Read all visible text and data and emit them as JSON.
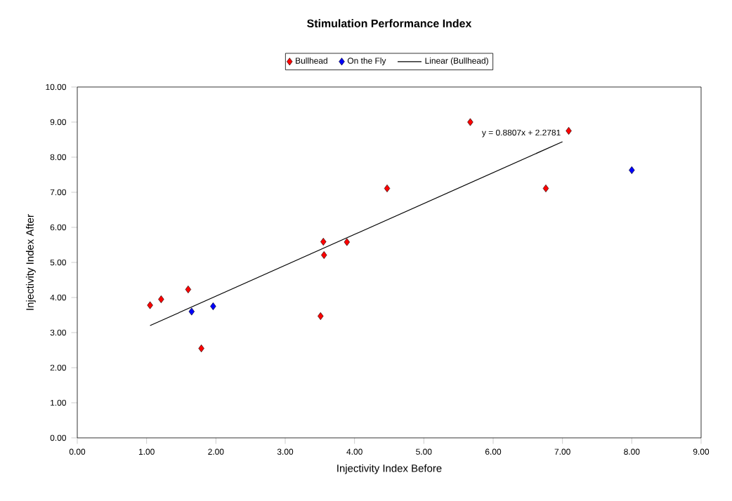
{
  "chart_data": {
    "type": "scatter",
    "title": "Stimulation Performance Index",
    "xlabel": "Injectivity Index Before",
    "ylabel": "Injectivity Index After",
    "series": [
      {
        "name": "Bullhead",
        "marker": "diamond",
        "color": "#ff0000",
        "x": [
          1.05,
          1.21,
          1.6,
          1.79,
          3.51,
          3.56,
          3.55,
          3.89,
          4.47,
          5.67,
          6.76,
          7.09
        ],
        "values": [
          3.78,
          3.95,
          4.23,
          2.55,
          3.47,
          5.21,
          5.59,
          5.58,
          7.11,
          9.0,
          7.11,
          8.75
        ]
      },
      {
        "name": "On the Fly",
        "marker": "diamond",
        "color": "#0000ff",
        "x": [
          1.65,
          1.96,
          8.0
        ],
        "values": [
          3.6,
          3.75,
          7.63
        ]
      },
      {
        "name": "Linear (Bullhead)",
        "type": "line",
        "color": "#000000",
        "x": [
          1.05,
          7.0
        ],
        "values": [
          3.2,
          8.44
        ]
      }
    ],
    "annotations": [
      {
        "text": "y = 0.8807x + 2.2781",
        "x": 7.0,
        "y": 8.44
      }
    ],
    "xlim": [
      0,
      9
    ],
    "ylim": [
      0,
      10
    ],
    "xticks": [
      {
        "value": 0,
        "label": "0.00"
      },
      {
        "value": 1,
        "label": "1.00"
      },
      {
        "value": 2,
        "label": "2.00"
      },
      {
        "value": 3,
        "label": "3.00"
      },
      {
        "value": 4,
        "label": "4.00"
      },
      {
        "value": 5,
        "label": "5.00"
      },
      {
        "value": 6,
        "label": "6.00"
      },
      {
        "value": 7,
        "label": "7.00"
      },
      {
        "value": 8,
        "label": "8.00"
      },
      {
        "value": 9,
        "label": "9.00"
      }
    ],
    "yticks": [
      {
        "value": 0,
        "label": "0.00"
      },
      {
        "value": 1,
        "label": "1.00"
      },
      {
        "value": 2,
        "label": "2.00"
      },
      {
        "value": 3,
        "label": "3.00"
      },
      {
        "value": 4,
        "label": "4.00"
      },
      {
        "value": 5,
        "label": "5.00"
      },
      {
        "value": 6,
        "label": "6.00"
      },
      {
        "value": 7,
        "label": "7.00"
      },
      {
        "value": 8,
        "label": "8.00"
      },
      {
        "value": 9,
        "label": "9.00"
      },
      {
        "value": 10,
        "label": "10.00"
      }
    ],
    "legend": "top"
  }
}
